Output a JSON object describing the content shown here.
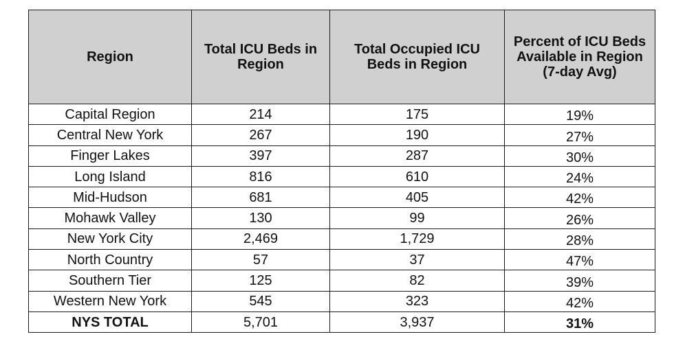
{
  "table": {
    "headers": [
      "Region",
      "Total ICU Beds in Region",
      "Total Occupied ICU Beds in Region",
      "Percent of ICU Beds Available in Region (7-day Avg)"
    ],
    "rows": [
      [
        "Capital Region",
        "214",
        "175",
        "19%"
      ],
      [
        "Central New York",
        "267",
        "190",
        "27%"
      ],
      [
        "Finger Lakes",
        "397",
        "287",
        "30%"
      ],
      [
        "Long Island",
        "816",
        "610",
        "24%"
      ],
      [
        "Mid-Hudson",
        "681",
        "405",
        "42%"
      ],
      [
        "Mohawk Valley",
        "130",
        "99",
        "26%"
      ],
      [
        "New York City",
        "2,469",
        "1,729",
        "28%"
      ],
      [
        "North Country",
        "57",
        "37",
        "47%"
      ],
      [
        "Southern Tier",
        "125",
        "82",
        "39%"
      ],
      [
        "Western New York",
        "545",
        "323",
        "42%"
      ]
    ],
    "total": [
      "NYS TOTAL",
      "5,701",
      "3,937",
      "31%"
    ]
  }
}
